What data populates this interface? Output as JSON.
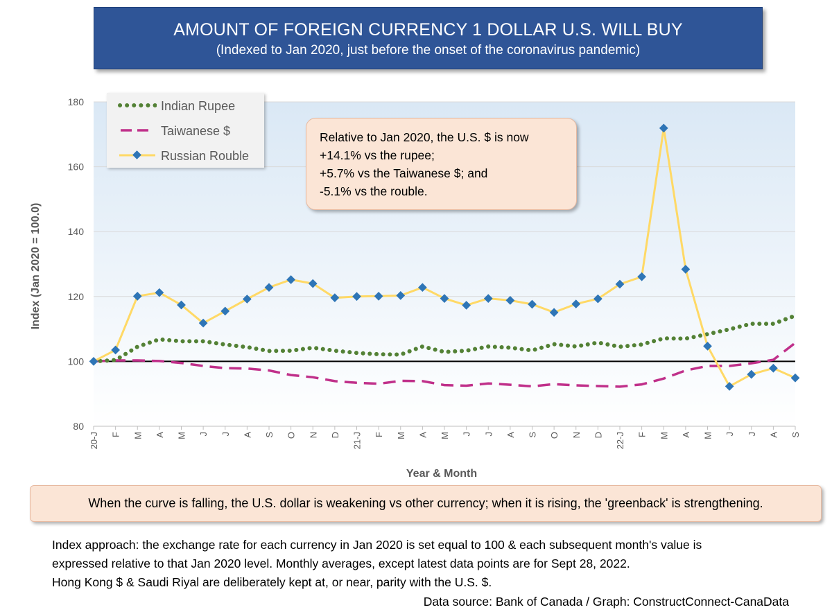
{
  "title": "AMOUNT OF FOREIGN CURRENCY 1 DOLLAR U.S. WILL BUY",
  "subtitle": "(Indexed to Jan 2020, just before the onset of the coronavirus pandemic)",
  "callout_lines": [
    "Relative to Jan 2020, the U.S. $ is now",
    "+14.1% vs the rupee;",
    "+5.7% vs the Taiwanese $; and",
    "-5.1% vs the rouble."
  ],
  "note": "When the curve is falling, the U.S. dollar is weakening vs other currency; when it is rising, the 'greenback' is strengthening.",
  "footnotes": [
    "Index approach: the exchange rate for each currency in Jan 2020 is set equal to 100 & each subsequent month's value is",
    "expressed relative to that Jan 2020 level. Monthly averages, except latest data points are for Sept 28, 2022.",
    "Hong Kong $ & Saudi Riyal are deliberately kept at, or near, parity with the U.S. $."
  ],
  "source": "Data source: Bank of Canada / Graph: ConstructConnect-CanaData",
  "colors": {
    "rupee": "#538135",
    "taiwan": "#c0308a",
    "rouble_line": "#ffd966",
    "rouble_marker": "#2e75b6",
    "baseline": "#000000",
    "title_bg": "#2f5597"
  },
  "chart_data": {
    "type": "line",
    "xlabel": "Year & Month",
    "ylabel": "Index (Jan 2020 = 100.0)",
    "ylim": [
      80,
      180
    ],
    "yticks": [
      80,
      100,
      120,
      140,
      160,
      180
    ],
    "grid": "horizontal",
    "legend_position": "top-left",
    "reference_line": 100,
    "categories": [
      "20-J",
      "F",
      "M",
      "A",
      "M",
      "J",
      "J",
      "A",
      "S",
      "O",
      "N",
      "D",
      "21-J",
      "F",
      "M",
      "A",
      "M",
      "J",
      "J",
      "A",
      "S",
      "O",
      "N",
      "D",
      "22-J",
      "F",
      "M",
      "A",
      "M",
      "J",
      "J",
      "A",
      "S"
    ],
    "series": [
      {
        "name": "Indian Rupee",
        "style": "dotted",
        "values": [
          100.0,
          100.4,
          104.5,
          106.8,
          106.2,
          106.2,
          105.2,
          104.4,
          103.2,
          103.3,
          104.2,
          103.3,
          102.6,
          102.2,
          102.1,
          104.6,
          102.9,
          103.3,
          104.6,
          104.2,
          103.4,
          105.3,
          104.6,
          105.8,
          104.5,
          105.2,
          107.1,
          107.0,
          108.4,
          109.9,
          111.6,
          111.6,
          114.1
        ]
      },
      {
        "name": "Taiwanese $",
        "style": "dashed",
        "values": [
          100.0,
          100.3,
          100.3,
          100.1,
          99.5,
          98.6,
          97.9,
          97.8,
          97.2,
          95.8,
          95.1,
          93.9,
          93.4,
          93.1,
          94.0,
          93.9,
          92.7,
          92.5,
          93.2,
          92.8,
          92.3,
          93.0,
          92.6,
          92.4,
          92.2,
          92.9,
          94.7,
          97.2,
          98.6,
          98.6,
          99.4,
          100.5,
          105.7
        ]
      },
      {
        "name": "Russian Rouble",
        "style": "solid-markers",
        "values": [
          100.0,
          103.5,
          120.1,
          121.2,
          117.4,
          111.8,
          115.5,
          119.2,
          122.8,
          125.2,
          124.0,
          119.6,
          120.0,
          120.1,
          120.3,
          122.8,
          119.4,
          117.3,
          119.4,
          118.8,
          117.6,
          115.1,
          117.7,
          119.3,
          123.8,
          126.1,
          171.9,
          128.4,
          104.7,
          92.3,
          96.0,
          97.9,
          94.9
        ]
      }
    ]
  }
}
